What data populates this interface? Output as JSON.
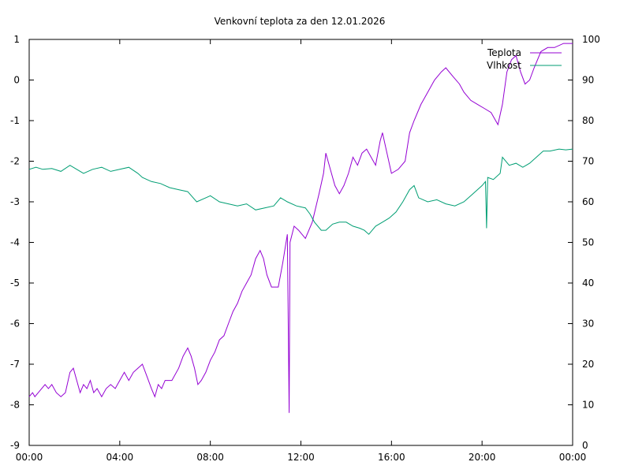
{
  "chart_data": {
    "type": "line",
    "title": "Venkovní teplota za den 12.01.2026",
    "x_ticks": [
      "00:00",
      "04:00",
      "08:00",
      "12:00",
      "16:00",
      "20:00",
      "00:00"
    ],
    "xlim_hours": [
      0,
      24
    ],
    "y_left": {
      "ticks": [
        "1",
        "0",
        "-1",
        "-2",
        "-3",
        "-4",
        "-5",
        "-6",
        "-7",
        "-8",
        "-9"
      ],
      "ylim": [
        -9,
        1
      ]
    },
    "y_right": {
      "ticks": [
        "100",
        "90",
        "80",
        "70",
        "60",
        "50",
        "40",
        "30",
        "20",
        "10",
        "0"
      ],
      "ylim": [
        0,
        100
      ]
    },
    "legend_position": "top-right",
    "series": [
      {
        "name": "Teplota",
        "axis": "left",
        "color": "#9400d3",
        "points": [
          [
            0.0,
            -7.8
          ],
          [
            0.15,
            -7.7
          ],
          [
            0.25,
            -7.8
          ],
          [
            0.4,
            -7.7
          ],
          [
            0.55,
            -7.6
          ],
          [
            0.7,
            -7.5
          ],
          [
            0.85,
            -7.6
          ],
          [
            1.0,
            -7.5
          ],
          [
            1.2,
            -7.7
          ],
          [
            1.4,
            -7.8
          ],
          [
            1.6,
            -7.7
          ],
          [
            1.8,
            -7.2
          ],
          [
            1.95,
            -7.1
          ],
          [
            2.1,
            -7.4
          ],
          [
            2.25,
            -7.7
          ],
          [
            2.4,
            -7.5
          ],
          [
            2.55,
            -7.6
          ],
          [
            2.7,
            -7.4
          ],
          [
            2.85,
            -7.7
          ],
          [
            3.0,
            -7.6
          ],
          [
            3.2,
            -7.8
          ],
          [
            3.4,
            -7.6
          ],
          [
            3.6,
            -7.5
          ],
          [
            3.8,
            -7.6
          ],
          [
            4.0,
            -7.4
          ],
          [
            4.2,
            -7.2
          ],
          [
            4.4,
            -7.4
          ],
          [
            4.6,
            -7.2
          ],
          [
            4.8,
            -7.1
          ],
          [
            5.0,
            -7.0
          ],
          [
            5.2,
            -7.3
          ],
          [
            5.4,
            -7.6
          ],
          [
            5.55,
            -7.8
          ],
          [
            5.7,
            -7.5
          ],
          [
            5.85,
            -7.6
          ],
          [
            6.0,
            -7.4
          ],
          [
            6.3,
            -7.4
          ],
          [
            6.6,
            -7.1
          ],
          [
            6.8,
            -6.8
          ],
          [
            7.0,
            -6.6
          ],
          [
            7.15,
            -6.8
          ],
          [
            7.3,
            -7.1
          ],
          [
            7.45,
            -7.5
          ],
          [
            7.6,
            -7.4
          ],
          [
            7.8,
            -7.2
          ],
          [
            8.0,
            -6.9
          ],
          [
            8.2,
            -6.7
          ],
          [
            8.4,
            -6.4
          ],
          [
            8.6,
            -6.3
          ],
          [
            8.8,
            -6.0
          ],
          [
            9.0,
            -5.7
          ],
          [
            9.2,
            -5.5
          ],
          [
            9.4,
            -5.2
          ],
          [
            9.6,
            -5.0
          ],
          [
            9.8,
            -4.8
          ],
          [
            10.0,
            -4.4
          ],
          [
            10.2,
            -4.2
          ],
          [
            10.35,
            -4.4
          ],
          [
            10.5,
            -4.8
          ],
          [
            10.7,
            -5.1
          ],
          [
            11.0,
            -5.1
          ],
          [
            11.2,
            -4.5
          ],
          [
            11.4,
            -3.8
          ],
          [
            11.48,
            -8.2
          ],
          [
            11.52,
            -4.0
          ],
          [
            11.7,
            -3.6
          ],
          [
            11.9,
            -3.7
          ],
          [
            12.2,
            -3.9
          ],
          [
            12.5,
            -3.5
          ],
          [
            12.8,
            -2.8
          ],
          [
            13.0,
            -2.3
          ],
          [
            13.1,
            -1.8
          ],
          [
            13.3,
            -2.2
          ],
          [
            13.5,
            -2.6
          ],
          [
            13.7,
            -2.8
          ],
          [
            13.9,
            -2.6
          ],
          [
            14.1,
            -2.3
          ],
          [
            14.3,
            -1.9
          ],
          [
            14.5,
            -2.1
          ],
          [
            14.7,
            -1.8
          ],
          [
            14.9,
            -1.7
          ],
          [
            15.1,
            -1.9
          ],
          [
            15.3,
            -2.1
          ],
          [
            15.5,
            -1.5
          ],
          [
            15.6,
            -1.3
          ],
          [
            15.8,
            -1.8
          ],
          [
            16.0,
            -2.3
          ],
          [
            16.3,
            -2.2
          ],
          [
            16.6,
            -2.0
          ],
          [
            16.8,
            -1.3
          ],
          [
            17.0,
            -1.0
          ],
          [
            17.3,
            -0.6
          ],
          [
            17.6,
            -0.3
          ],
          [
            17.9,
            0.0
          ],
          [
            18.2,
            0.2
          ],
          [
            18.4,
            0.3
          ],
          [
            18.7,
            0.1
          ],
          [
            19.0,
            -0.1
          ],
          [
            19.2,
            -0.3
          ],
          [
            19.5,
            -0.5
          ],
          [
            19.8,
            -0.6
          ],
          [
            20.1,
            -0.7
          ],
          [
            20.4,
            -0.8
          ],
          [
            20.6,
            -1.0
          ],
          [
            20.7,
            -1.1
          ],
          [
            20.9,
            -0.6
          ],
          [
            21.1,
            0.2
          ],
          [
            21.3,
            0.5
          ],
          [
            21.5,
            0.6
          ],
          [
            21.7,
            0.2
          ],
          [
            21.9,
            -0.1
          ],
          [
            22.1,
            0.0
          ],
          [
            22.3,
            0.3
          ],
          [
            22.6,
            0.7
          ],
          [
            22.9,
            0.8
          ],
          [
            23.2,
            0.8
          ],
          [
            23.6,
            0.9
          ],
          [
            24.0,
            0.9
          ]
        ]
      },
      {
        "name": "Vlhkost",
        "axis": "right",
        "color": "#009e73",
        "points": [
          [
            0.0,
            68
          ],
          [
            0.3,
            68.5
          ],
          [
            0.6,
            68
          ],
          [
            1.0,
            68.2
          ],
          [
            1.4,
            67.5
          ],
          [
            1.8,
            69
          ],
          [
            2.1,
            68
          ],
          [
            2.4,
            67
          ],
          [
            2.8,
            68
          ],
          [
            3.2,
            68.5
          ],
          [
            3.6,
            67.5
          ],
          [
            4.0,
            68
          ],
          [
            4.4,
            68.5
          ],
          [
            4.8,
            67
          ],
          [
            5.0,
            66
          ],
          [
            5.4,
            65
          ],
          [
            5.8,
            64.5
          ],
          [
            6.2,
            63.5
          ],
          [
            6.6,
            63
          ],
          [
            7.0,
            62.5
          ],
          [
            7.4,
            60
          ],
          [
            7.8,
            61
          ],
          [
            8.0,
            61.5
          ],
          [
            8.4,
            60
          ],
          [
            8.8,
            59.5
          ],
          [
            9.2,
            59
          ],
          [
            9.6,
            59.5
          ],
          [
            10.0,
            58
          ],
          [
            10.4,
            58.5
          ],
          [
            10.8,
            59
          ],
          [
            11.1,
            61
          ],
          [
            11.4,
            60
          ],
          [
            11.8,
            59
          ],
          [
            12.2,
            58.5
          ],
          [
            12.4,
            57
          ],
          [
            12.6,
            55
          ],
          [
            12.9,
            53
          ],
          [
            13.1,
            53
          ],
          [
            13.4,
            54.5
          ],
          [
            13.7,
            55
          ],
          [
            14.0,
            55
          ],
          [
            14.3,
            54
          ],
          [
            14.6,
            53.5
          ],
          [
            14.8,
            53
          ],
          [
            15.0,
            52
          ],
          [
            15.3,
            54
          ],
          [
            15.6,
            55
          ],
          [
            15.9,
            56
          ],
          [
            16.2,
            57.5
          ],
          [
            16.5,
            60
          ],
          [
            16.8,
            63
          ],
          [
            17.0,
            64
          ],
          [
            17.2,
            61
          ],
          [
            17.6,
            60
          ],
          [
            18.0,
            60.5
          ],
          [
            18.4,
            59.5
          ],
          [
            18.8,
            59
          ],
          [
            19.2,
            60
          ],
          [
            19.6,
            62
          ],
          [
            20.0,
            64
          ],
          [
            20.15,
            65
          ],
          [
            20.2,
            53.5
          ],
          [
            20.25,
            66
          ],
          [
            20.5,
            65.5
          ],
          [
            20.8,
            67
          ],
          [
            20.9,
            71
          ],
          [
            21.2,
            69
          ],
          [
            21.5,
            69.5
          ],
          [
            21.8,
            68.5
          ],
          [
            22.1,
            69.5
          ],
          [
            22.4,
            71
          ],
          [
            22.7,
            72.5
          ],
          [
            23.0,
            72.5
          ],
          [
            23.4,
            73
          ],
          [
            23.7,
            72.8
          ],
          [
            24.0,
            73
          ]
        ]
      }
    ]
  }
}
